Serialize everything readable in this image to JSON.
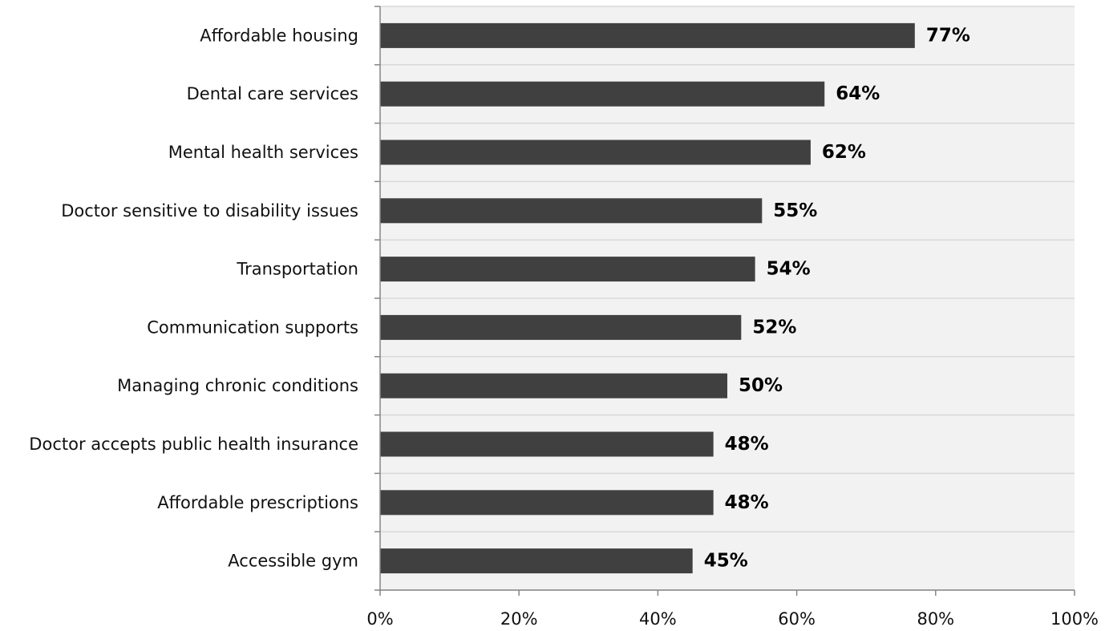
{
  "chart_data": {
    "type": "bar",
    "orientation": "horizontal",
    "categories": [
      "Affordable housing",
      "Dental care services",
      "Mental health services",
      "Doctor sensitive to disability issues",
      "Transportation",
      "Communication supports",
      "Managing chronic conditions",
      "Doctor accepts public health insurance",
      "Affordable prescriptions",
      "Accessible gym"
    ],
    "values": [
      77,
      64,
      62,
      55,
      54,
      52,
      50,
      48,
      48,
      45
    ],
    "data_labels": [
      "77%",
      "64%",
      "62%",
      "55%",
      "54%",
      "52%",
      "50%",
      "48%",
      "48%",
      "45%"
    ],
    "x_ticks": [
      "0%",
      "20%",
      "40%",
      "60%",
      "80%",
      "100%"
    ],
    "xlim": [
      0,
      100
    ],
    "title": "",
    "xlabel": "",
    "ylabel": "",
    "grid": true,
    "legend": false,
    "colors": {
      "bar": "#404040",
      "plot_background": "#f2f2f2",
      "gridline": "#d9d9d9",
      "axis": "#868686"
    }
  }
}
